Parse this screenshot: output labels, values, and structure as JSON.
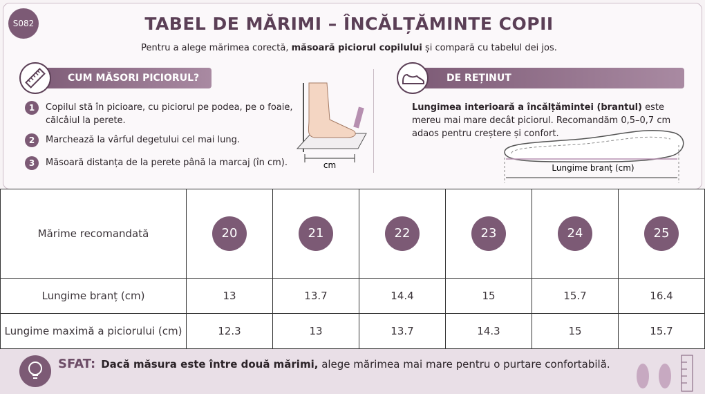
{
  "badge": "S082",
  "header": {
    "title": "TABEL DE MĂRIMI – ÎNCĂLȚĂMINTE COPII",
    "subtitle": {
      "before": "Pentru a alege mărimea corectă, ",
      "bold": "măsoară piciorul copilului",
      "after": " și compară cu tabelul dei jos."
    }
  },
  "how": {
    "title": "CUM MĂSORI PICIORUL?",
    "steps": [
      {
        "number": 1,
        "text": "Copilul stă în picioare, cu piciorul pe podea, pe o foaie, călcâiul la perete."
      },
      {
        "number": 2,
        "text": "Marchează la vârful degetului cel mai lung."
      },
      {
        "number": 3,
        "text": "Măsoară distanța de la perete până la marcaj (în cm)."
      }
    ],
    "figure_label": "cm"
  },
  "note": {
    "title": "DE REȚINUT",
    "bold": "Lungimea interioară a încălțămintei (brantul)",
    "text": " este mereu mai mare decât piciorul. Recomandăm 0,5–0,7 cm adaos pentru creștere și confort.",
    "figure_label": "Lungime branț (cm)"
  },
  "table": {
    "rows": [
      [
        "Mărime recomandată",
        20,
        21,
        22,
        23,
        24,
        25
      ],
      [
        "Lungime branț (cm)",
        13,
        13.7,
        14.4,
        15,
        15.7,
        16.4
      ],
      [
        "Lungime maximă a piciorului (cm)",
        12.3,
        13,
        13.7,
        14.3,
        15,
        15.7
      ]
    ]
  },
  "tip": {
    "label": "SFAT:",
    "bold": "Dacă măsura este între două mărimi,",
    "text": " alege mărimea mai mare pentru o purtare confortabilă."
  }
}
